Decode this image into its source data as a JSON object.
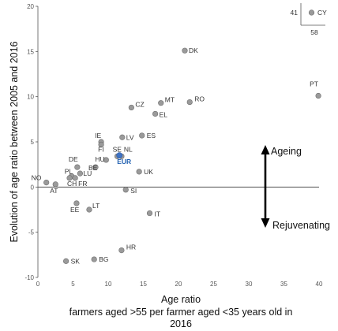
{
  "chart_data": {
    "type": "scatter",
    "xlabel_lines": [
      "Age ratio",
      "farmers aged >55 per farmer aged <35 years old in",
      "2016"
    ],
    "ylabel": "Evolution of age ratio between 2005 and 2016",
    "xlim": [
      0,
      40
    ],
    "ylim": [
      -10,
      20
    ],
    "x_ticks": [
      0,
      5,
      10,
      15,
      20,
      25,
      30,
      35,
      40
    ],
    "y_ticks": [
      -10,
      -5,
      0,
      5,
      10,
      15,
      20
    ],
    "reference_line_y": 0,
    "colors": {
      "point": "#9a9a9a",
      "point_stroke": "#6f6f6f",
      "highlight": "#3f73c4",
      "highlight_text": "#1f5fb0",
      "axis": "#555555",
      "grid": "none"
    },
    "points": [
      {
        "label": "NO",
        "x": 1.2,
        "y": 0.5
      },
      {
        "label": "AT",
        "x": 2.5,
        "y": 0.3
      },
      {
        "label": "PL",
        "x": 4.8,
        "y": 1.2
      },
      {
        "label": "CH",
        "x": 4.5,
        "y": 1.0
      },
      {
        "label": "FR",
        "x": 5.3,
        "y": 1.0
      },
      {
        "label": "LU",
        "x": 6.0,
        "y": 1.5
      },
      {
        "label": "DE",
        "x": 5.6,
        "y": 2.2
      },
      {
        "label": "BE",
        "x": 8.2,
        "y": 2.2
      },
      {
        "label": "HU",
        "x": 9.7,
        "y": 3.0
      },
      {
        "label": "IE",
        "x": 9.0,
        "y": 5.0
      },
      {
        "label": "FI",
        "x": 9.0,
        "y": 4.7
      },
      {
        "label": "SE",
        "x": 11.3,
        "y": 3.4
      },
      {
        "label": "NL",
        "x": 11.9,
        "y": 3.4
      },
      {
        "label": "EUR",
        "x": 11.6,
        "y": 3.5,
        "highlight": true
      },
      {
        "label": "LV",
        "x": 12.0,
        "y": 5.5
      },
      {
        "label": "ES",
        "x": 14.8,
        "y": 5.7
      },
      {
        "label": "UK",
        "x": 14.4,
        "y": 1.7
      },
      {
        "label": "SI",
        "x": 12.5,
        "y": -0.3
      },
      {
        "label": "EE",
        "x": 5.5,
        "y": -1.8
      },
      {
        "label": "LT",
        "x": 7.3,
        "y": -2.5
      },
      {
        "label": "IT",
        "x": 15.9,
        "y": -2.9
      },
      {
        "label": "CZ",
        "x": 13.3,
        "y": 8.8
      },
      {
        "label": "MT",
        "x": 17.5,
        "y": 9.3
      },
      {
        "label": "EL",
        "x": 16.7,
        "y": 8.1
      },
      {
        "label": "RO",
        "x": 21.6,
        "y": 9.4
      },
      {
        "label": "DK",
        "x": 20.9,
        "y": 15.1
      },
      {
        "label": "PT",
        "x": 39.9,
        "y": 10.1
      },
      {
        "label": "HR",
        "x": 11.9,
        "y": -7.0
      },
      {
        "label": "SK",
        "x": 4.0,
        "y": -8.2
      },
      {
        "label": "BG",
        "x": 8.0,
        "y": -8.0
      }
    ],
    "outlier_inset": {
      "label": "CY",
      "x": 58,
      "y": 41
    },
    "annotations": {
      "up": "Ageing",
      "down": "Rejuvenating"
    }
  }
}
